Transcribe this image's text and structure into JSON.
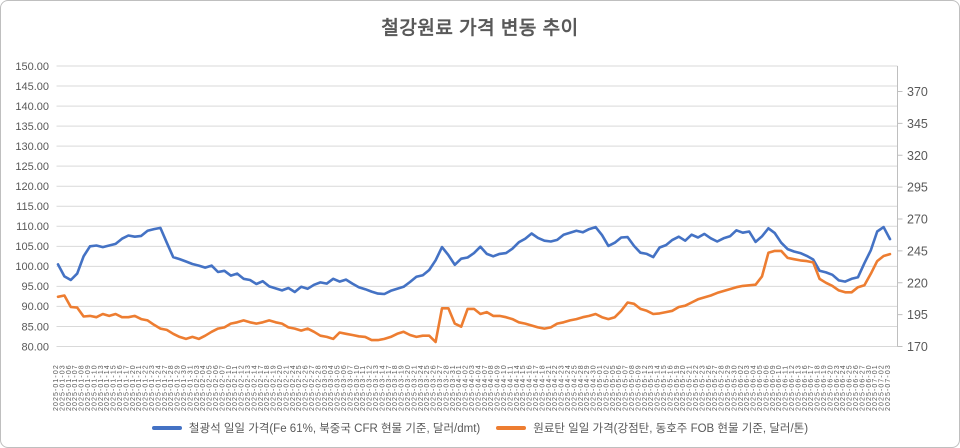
{
  "title": "철강원료 가격 변동 추이",
  "chart_data": {
    "type": "line",
    "title": "철강원료 가격 변동 추이",
    "grid": true,
    "legend_position": "bottom",
    "left_axis": {
      "min": 80,
      "max": 150,
      "step": 5,
      "ticks": [
        "150.00",
        "145.00",
        "140.00",
        "135.00",
        "130.00",
        "125.00",
        "120.00",
        "115.00",
        "110.00",
        "105.00",
        "100.00",
        "95.00",
        "90.00",
        "85.00",
        "80.00"
      ]
    },
    "right_axis": {
      "min": 170,
      "max": 390,
      "step": 25,
      "ticks": [
        "370",
        "345",
        "320",
        "295",
        "270",
        "245",
        "220",
        "195",
        "170"
      ]
    },
    "x_labels": [
      "2025-01-02",
      "2025-01-03",
      "2025-01-06",
      "2025-01-07",
      "2025-01-08",
      "2025-01-09",
      "2025-01-10",
      "2025-01-13",
      "2025-01-14",
      "2025-01-15",
      "2025-01-16",
      "2025-01-17",
      "2025-01-20",
      "2025-01-21",
      "2025-01-22",
      "2025-01-23",
      "2025-01-24",
      "2025-01-27",
      "2025-01-28",
      "2025-01-29",
      "2025-01-30",
      "2025-01-31",
      "2025-02-03",
      "2025-02-04",
      "2025-02-05",
      "2025-02-06",
      "2025-02-07",
      "2025-02-10",
      "2025-02-11",
      "2025-02-12",
      "2025-02-13",
      "2025-02-14",
      "2025-02-17",
      "2025-02-18",
      "2025-02-19",
      "2025-02-20",
      "2025-02-21",
      "2025-02-24",
      "2025-02-25",
      "2025-02-26",
      "2025-02-27",
      "2025-02-28",
      "2025-03-03",
      "2025-03-04",
      "2025-03-05",
      "2025-03-06",
      "2025-03-07",
      "2025-03-10",
      "2025-03-11",
      "2025-03-12",
      "2025-03-13",
      "2025-03-14",
      "2025-03-17",
      "2025-03-18",
      "2025-03-19",
      "2025-03-20",
      "2025-03-21",
      "2025-03-24",
      "2025-03-25",
      "2025-03-26",
      "2025-03-27",
      "2025-03-28",
      "2025-03-31",
      "2025-04-01",
      "2025-04-02",
      "2025-04-03",
      "2025-04-04",
      "2025-04-07",
      "2025-04-08",
      "2025-04-09",
      "2025-04-10",
      "2025-04-11",
      "2025-04-14",
      "2025-04-15",
      "2025-04-16",
      "2025-04-17",
      "2025-04-18",
      "2025-04-21",
      "2025-04-22",
      "2025-04-23",
      "2025-04-24",
      "2025-04-25",
      "2025-04-28",
      "2025-04-29",
      "2025-04-30",
      "2025-05-01",
      "2025-05-02",
      "2025-05-05",
      "2025-05-06",
      "2025-05-07",
      "2025-05-08",
      "2025-05-09",
      "2025-05-12",
      "2025-05-13",
      "2025-05-14",
      "2025-05-15",
      "2025-05-16",
      "2025-05-19",
      "2025-05-20",
      "2025-05-21",
      "2025-05-22",
      "2025-05-23",
      "2025-05-26",
      "2025-05-27",
      "2025-05-28",
      "2025-05-29",
      "2025-05-30",
      "2025-06-02",
      "2025-06-03",
      "2025-06-04",
      "2025-06-05",
      "2025-06-06",
      "2025-06-09",
      "2025-06-10",
      "2025-06-11",
      "2025-06-12",
      "2025-06-13",
      "2025-06-16",
      "2025-06-17",
      "2025-06-18",
      "2025-06-19",
      "2025-06-20",
      "2025-06-23",
      "2025-06-24",
      "2025-06-25",
      "2025-06-26",
      "2025-06-27",
      "2025-06-30",
      "2025-07-01",
      "2025-07-02",
      "2025-07-03"
    ],
    "series": [
      {
        "name": "철광석 일일 가격(Fe 61%, 북중국 CFR 현물 기준, 달러/dmt)",
        "axis": "left",
        "color": "#4472C4",
        "values": [
          100.5,
          97.5,
          96.6,
          98.2,
          102.5,
          105,
          105.2,
          104.8,
          105.2,
          105.6,
          106.9,
          107.7,
          107.4,
          107.6,
          108.9,
          109.3,
          109.6,
          105.9,
          102.3,
          101.8,
          101.2,
          100.6,
          100.2,
          99.7,
          100.2,
          98.6,
          98.9,
          97.7,
          98.2,
          96.9,
          96.6,
          95.6,
          96.3,
          95,
          94.5,
          94,
          94.6,
          93.6,
          94.9,
          94.4,
          95.4,
          96,
          95.7,
          96.9,
          96.2,
          96.7,
          95.7,
          94.8,
          94.3,
          93.7,
          93.2,
          93.1,
          93.9,
          94.4,
          94.9,
          96.1,
          97.4,
          97.8,
          99.1,
          101.5,
          104.8,
          102.8,
          100.4,
          101.9,
          102.2,
          103.3,
          104.9,
          103.1,
          102.5,
          103.1,
          103.3,
          104.4,
          106,
          106.9,
          108.2,
          107.1,
          106.4,
          106.2,
          106.6,
          107.9,
          108.4,
          108.9,
          108.5,
          109.3,
          109.8,
          107.8,
          105.1,
          105.9,
          107.2,
          107.3,
          105.1,
          103.4,
          103.1,
          102.3,
          104.7,
          105.3,
          106.6,
          107.4,
          106.4,
          107.9,
          107.2,
          108.1,
          107,
          106.2,
          107,
          107.5,
          109,
          108.4,
          108.7,
          106.1,
          107.5,
          109.5,
          108.3,
          105.9,
          104.3,
          103.7,
          103.3,
          102.6,
          101.7,
          98.9,
          98.5,
          97.9,
          96.5,
          96.2,
          96.9,
          97.3,
          100.8,
          104,
          108.7,
          109.8,
          106.8
        ]
      },
      {
        "name": "원료탄 일일 가격(강점탄, 동호주 FOB 현물 기준, 달러/톤)",
        "axis": "right",
        "color": "#ED7D31",
        "values": [
          209,
          210,
          201,
          200.5,
          193.5,
          194,
          193,
          195.5,
          194,
          195.5,
          193,
          193,
          194,
          191.5,
          190.5,
          187,
          184,
          183,
          180,
          177.5,
          176,
          177.5,
          176,
          178.5,
          181.5,
          184,
          185,
          188,
          189,
          190.5,
          189,
          188,
          189,
          190.5,
          189,
          188,
          185,
          184,
          182.5,
          184,
          181.5,
          178.5,
          177.5,
          176,
          181,
          180,
          179,
          178,
          177.5,
          175,
          175,
          176,
          177.5,
          180,
          181.5,
          179,
          177.5,
          178.5,
          178.5,
          173.5,
          200,
          200,
          188,
          185.5,
          199.5,
          199.5,
          195.5,
          197,
          194,
          194,
          193,
          191.5,
          189,
          188,
          186.5,
          185,
          184,
          185,
          188,
          189,
          190.5,
          191.5,
          193,
          194,
          195.5,
          193,
          191.5,
          193,
          198,
          204.5,
          203.5,
          199.5,
          198,
          195.5,
          196,
          197,
          198,
          201,
          202,
          204.5,
          207,
          208.5,
          210,
          212,
          213.5,
          215,
          216.5,
          217.5,
          218,
          218.5,
          225,
          243.5,
          245,
          245,
          239.5,
          238.5,
          237.5,
          237,
          236,
          223,
          220,
          217.5,
          214,
          212.5,
          212.5,
          216.5,
          218,
          227,
          237,
          241,
          242.5
        ]
      }
    ],
    "colors": {
      "gridline": "#D9D9D9",
      "axis_line": "#BFBFBF",
      "text": "#595959"
    }
  }
}
